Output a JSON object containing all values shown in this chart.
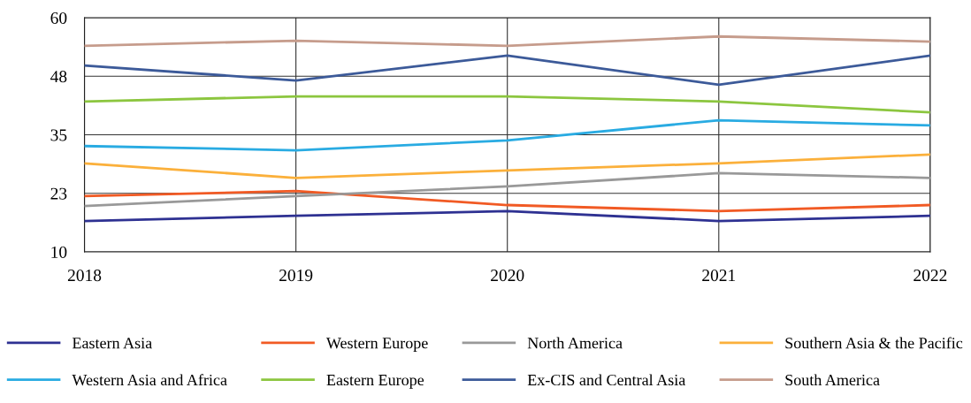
{
  "chart_data": {
    "type": "line",
    "x": [
      2018,
      2019,
      2020,
      2021,
      2022
    ],
    "xlim": [
      2018,
      2022
    ],
    "xticks": [
      2018,
      2019,
      2020,
      2021,
      2022
    ],
    "ylim": [
      10,
      60
    ],
    "yticks": [
      10,
      {
        "value": 22.5,
        "label": "23"
      },
      35,
      {
        "value": 47.5,
        "label": "48"
      },
      60
    ],
    "grid": true,
    "legend": "bottom",
    "marker": "none",
    "line_style": "solid",
    "series": [
      {
        "name": "Eastern Asia",
        "color": "#2e3192",
        "values": [
          16.6,
          17.7,
          18.7,
          16.6,
          17.7
        ]
      },
      {
        "name": "Western Europe",
        "color": "#f15a24",
        "values": [
          21.9,
          23.0,
          20.0,
          18.7,
          20.0
        ]
      },
      {
        "name": "North America",
        "color": "#999999",
        "values": [
          19.8,
          21.9,
          24.0,
          26.8,
          25.8
        ]
      },
      {
        "name": "Southern Asia & the Pacific",
        "color": "#fbb03b",
        "values": [
          28.9,
          25.8,
          27.4,
          28.9,
          30.8
        ]
      },
      {
        "name": "Western Asia and Africa",
        "color": "#29abe2",
        "values": [
          32.6,
          31.7,
          33.8,
          38.1,
          37.0
        ]
      },
      {
        "name": "Eastern Europe",
        "color": "#8cc63f",
        "values": [
          42.1,
          43.2,
          43.2,
          42.1,
          39.8
        ]
      },
      {
        "name": "Ex-CIS and Central Asia",
        "color": "#3c5a99",
        "values": [
          49.8,
          46.6,
          51.9,
          45.7,
          51.9
        ]
      },
      {
        "name": "South America",
        "color": "#c69c8c",
        "values": [
          54.0,
          55.1,
          54.0,
          56.0,
          54.9
        ]
      }
    ]
  }
}
